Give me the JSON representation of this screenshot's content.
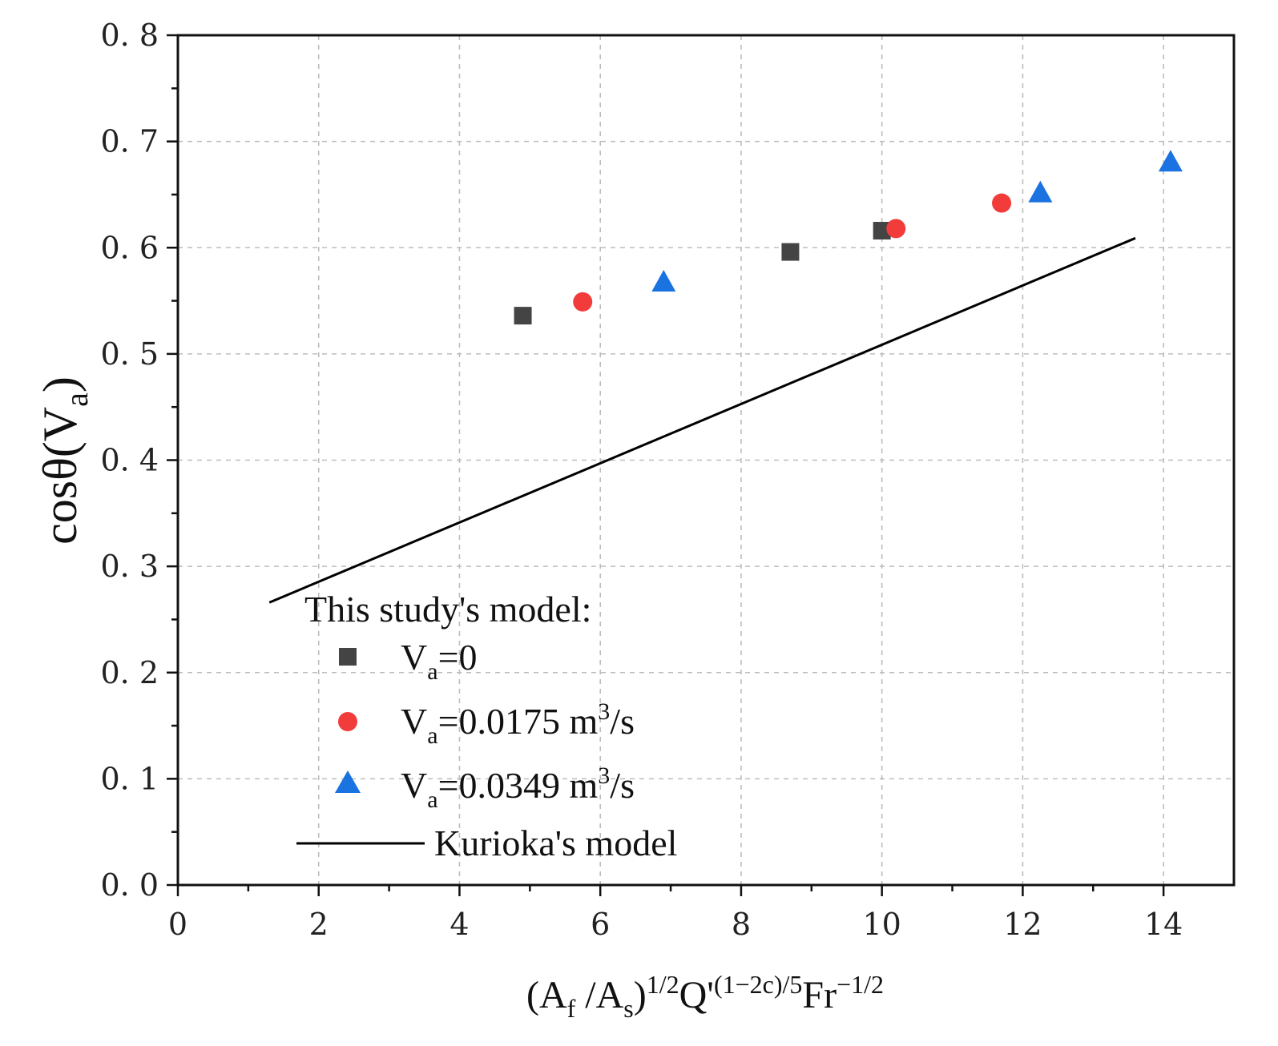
{
  "chart_data": {
    "type": "scatter",
    "xlabel": {
      "base": "(A",
      "sub_f": "f",
      "mid1": " /A",
      "sub_s": "s",
      "mid2": ")",
      "sup1": "1/2",
      "mid3": "Q'",
      "sup2": "(1−2c)/5",
      "mid4": "Fr",
      "sup3": "−1/2"
    },
    "ylabel": {
      "base": "cosθ(V",
      "sub": "a",
      "end": ")"
    },
    "xlim": [
      0,
      15
    ],
    "ylim": [
      0,
      0.8
    ],
    "x_ticks": [
      0,
      2,
      4,
      6,
      8,
      10,
      12,
      14
    ],
    "x_tick_labels": [
      "0",
      "2",
      "4",
      "6",
      "8",
      "10",
      "12",
      "14"
    ],
    "y_ticks": [
      0,
      0.1,
      0.2,
      0.3,
      0.4,
      0.5,
      0.6,
      0.7,
      0.8
    ],
    "y_tick_labels": [
      "0. 0",
      "0. 1",
      "0. 2",
      "0. 3",
      "0. 4",
      "0. 5",
      "0. 6",
      "0. 7",
      "0. 8"
    ],
    "grid": true,
    "legend_title": "This study's model:",
    "legend_position": "bottom-left",
    "series": [
      {
        "name": "Va=0",
        "label_base": "V",
        "label_sub": "a",
        "label_rest": "=0",
        "label_sup": "",
        "label_tail": "",
        "marker": "square",
        "color": "#444444",
        "x": [
          4.9,
          8.7,
          10.0
        ],
        "y": [
          0.536,
          0.596,
          0.616
        ]
      },
      {
        "name": "Va=0.0175 m3/s",
        "label_base": "V",
        "label_sub": "a",
        "label_rest": "=0.0175 m",
        "label_sup": "3",
        "label_tail": "/s",
        "marker": "circle",
        "color": "#f23b3b",
        "x": [
          5.75,
          10.2,
          11.7
        ],
        "y": [
          0.549,
          0.618,
          0.642
        ]
      },
      {
        "name": "Va=0.0349 m3/s",
        "label_base": "V",
        "label_sub": "a",
        "label_rest": "=0.0349 m",
        "label_sup": "3",
        "label_tail": "/s",
        "marker": "triangle",
        "color": "#1a73e0",
        "x": [
          6.9,
          12.25,
          14.1
        ],
        "y": [
          0.567,
          0.651,
          0.68
        ]
      },
      {
        "name": "Kurioka's model",
        "label": "Kurioka's model",
        "marker": "line",
        "color": "#000000",
        "x": [
          1.3,
          13.6
        ],
        "y": [
          0.266,
          0.609
        ]
      }
    ]
  }
}
